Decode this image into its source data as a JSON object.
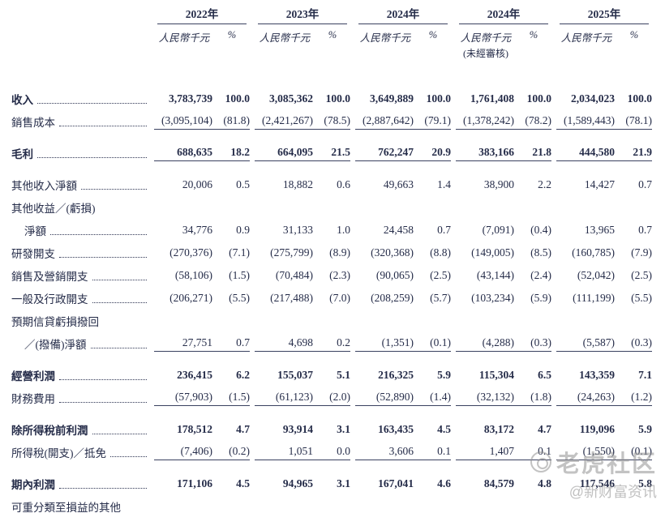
{
  "table": {
    "year_groups": [
      {
        "year": "2022年",
        "unit": "人民幣千元",
        "pct": "%",
        "note": ""
      },
      {
        "year": "2023年",
        "unit": "人民幣千元",
        "pct": "%",
        "note": ""
      },
      {
        "year": "2024年",
        "unit": "人民幣千元",
        "pct": "%",
        "note": ""
      },
      {
        "year": "2024年",
        "unit": "人民幣千元",
        "pct": "%",
        "note": "(未經審核)"
      },
      {
        "year": "2025年",
        "unit": "人民幣千元",
        "pct": "%",
        "note": ""
      }
    ],
    "rows": [
      {
        "label": "收入",
        "bold": true,
        "leader": true,
        "indent": false,
        "underline": false,
        "gap_before": false,
        "values": [
          "3,783,739",
          "100.0",
          "3,085,362",
          "100.0",
          "3,649,889",
          "100.0",
          "1,761,408",
          "100.0",
          "2,034,023",
          "100.0"
        ]
      },
      {
        "label": "銷售成本",
        "bold": false,
        "leader": true,
        "indent": false,
        "underline": true,
        "gap_before": false,
        "values": [
          "(3,095,104)",
          "(81.8)",
          "(2,421,267)",
          "(78.5)",
          "(2,887,642)",
          "(79.1)",
          "(1,378,242)",
          "(78.2)",
          "(1,589,443)",
          "(78.1)"
        ]
      },
      {
        "label": "毛利",
        "bold": true,
        "leader": true,
        "indent": false,
        "underline": true,
        "gap_before": true,
        "values": [
          "688,635",
          "18.2",
          "664,095",
          "21.5",
          "762,247",
          "20.9",
          "383,166",
          "21.8",
          "444,580",
          "21.9"
        ]
      },
      {
        "label": "其他收入淨額",
        "bold": false,
        "leader": true,
        "indent": false,
        "underline": false,
        "gap_before": true,
        "values": [
          "20,006",
          "0.5",
          "18,882",
          "0.6",
          "49,663",
          "1.4",
          "38,900",
          "2.2",
          "14,427",
          "0.7"
        ]
      },
      {
        "label": "其他收益／(虧損)",
        "bold": false,
        "leader": false,
        "indent": false,
        "underline": false,
        "gap_before": false,
        "values": []
      },
      {
        "label": "淨額",
        "bold": false,
        "leader": true,
        "indent": true,
        "underline": false,
        "gap_before": false,
        "values": [
          "34,776",
          "0.9",
          "31,133",
          "1.0",
          "24,458",
          "0.7",
          "(7,091)",
          "(0.4)",
          "13,965",
          "0.7"
        ]
      },
      {
        "label": "研發開支",
        "bold": false,
        "leader": true,
        "indent": false,
        "underline": false,
        "gap_before": false,
        "values": [
          "(270,376)",
          "(7.1)",
          "(275,799)",
          "(8.9)",
          "(320,368)",
          "(8.8)",
          "(149,005)",
          "(8.5)",
          "(160,785)",
          "(7.9)"
        ]
      },
      {
        "label": "銷售及營銷開支",
        "bold": false,
        "leader": true,
        "indent": false,
        "underline": false,
        "gap_before": false,
        "values": [
          "(58,106)",
          "(1.5)",
          "(70,484)",
          "(2.3)",
          "(90,065)",
          "(2.5)",
          "(43,144)",
          "(2.4)",
          "(52,042)",
          "(2.5)"
        ]
      },
      {
        "label": "一般及行政開支",
        "bold": false,
        "leader": true,
        "indent": false,
        "underline": false,
        "gap_before": false,
        "values": [
          "(206,271)",
          "(5.5)",
          "(217,488)",
          "(7.0)",
          "(208,259)",
          "(5.7)",
          "(103,234)",
          "(5.9)",
          "(111,199)",
          "(5.5)"
        ]
      },
      {
        "label": "預期信貸虧損撥回",
        "bold": false,
        "leader": false,
        "indent": false,
        "underline": false,
        "gap_before": false,
        "values": []
      },
      {
        "label": "／(撥備)淨額",
        "bold": false,
        "leader": true,
        "indent": true,
        "underline": true,
        "gap_before": false,
        "values": [
          "27,751",
          "0.7",
          "4,698",
          "0.2",
          "(1,351)",
          "(0.1)",
          "(4,288)",
          "(0.3)",
          "(5,587)",
          "(0.3)"
        ]
      },
      {
        "label": "經營利潤",
        "bold": true,
        "leader": true,
        "indent": false,
        "underline": false,
        "gap_before": true,
        "values": [
          "236,415",
          "6.2",
          "155,037",
          "5.1",
          "216,325",
          "5.9",
          "115,304",
          "6.5",
          "143,359",
          "7.1"
        ]
      },
      {
        "label": "財務費用",
        "bold": false,
        "leader": true,
        "indent": false,
        "underline": true,
        "gap_before": false,
        "values": [
          "(57,903)",
          "(1.5)",
          "(61,123)",
          "(2.0)",
          "(52,890)",
          "(1.4)",
          "(32,132)",
          "(1.8)",
          "(24,263)",
          "(1.2)"
        ]
      },
      {
        "label": "除所得稅前利潤",
        "bold": true,
        "leader": true,
        "indent": false,
        "underline": false,
        "gap_before": true,
        "values": [
          "178,512",
          "4.7",
          "93,914",
          "3.1",
          "163,435",
          "4.5",
          "83,172",
          "4.7",
          "119,096",
          "5.9"
        ]
      },
      {
        "label": "所得稅(開支)／抵免",
        "bold": false,
        "leader": true,
        "indent": false,
        "underline": true,
        "gap_before": false,
        "values": [
          "(7,406)",
          "(0.2)",
          "1,051",
          "0.0",
          "3,606",
          "0.1",
          "1,407",
          "0.1",
          "(1,550)",
          "(0.1)"
        ]
      },
      {
        "label": "期內利潤",
        "bold": true,
        "leader": true,
        "indent": false,
        "underline": false,
        "gap_before": true,
        "values": [
          "171,106",
          "4.5",
          "94,965",
          "3.1",
          "167,041",
          "4.6",
          "84,579",
          "4.8",
          "117,546",
          "5.8"
        ]
      },
      {
        "label": "可重分類至損益的其他",
        "bold": false,
        "leader": false,
        "indent": false,
        "underline": false,
        "gap_before": false,
        "values": []
      }
    ]
  },
  "watermark": {
    "brand": "老虎社区",
    "handle": "@新财富资讯"
  }
}
